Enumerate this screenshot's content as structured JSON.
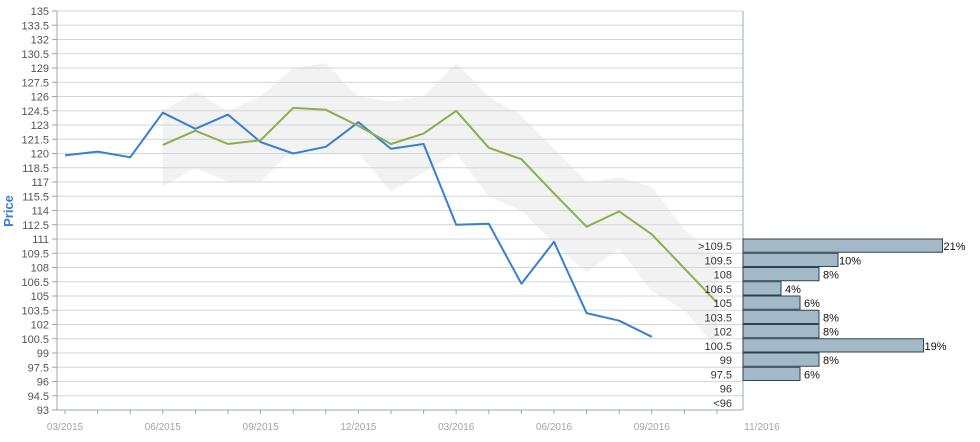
{
  "chart_data": {
    "type": "line",
    "ylabel": "Price",
    "yticks": [
      "135",
      "133.5",
      "132",
      "130.5",
      "129",
      "127.5",
      "126",
      "124.5",
      "123",
      "121.5",
      "120",
      "118.5",
      "117",
      "115.5",
      "114",
      "112.5",
      "111",
      "109.5",
      "108",
      "106.5",
      "105",
      "103.5",
      "102",
      "100.5",
      "99",
      "97.5",
      "96",
      "94.5",
      "93"
    ],
    "ylim": [
      93,
      135
    ],
    "xticks": [
      "03/2015",
      "06/2015",
      "09/2015",
      "12/2015",
      "03/2016",
      "06/2016",
      "09/2016",
      "11/2016"
    ],
    "x_start": "2015-03",
    "grid": true,
    "series": [
      {
        "name": "",
        "role": "actual",
        "color": "#3a7fcf",
        "x": [
          "2015-03",
          "2015-04",
          "2015-05",
          "2015-06",
          "2015-07",
          "2015-08",
          "2015-09",
          "2015-10",
          "2015-11",
          "2015-12",
          "2016-01",
          "2016-02",
          "2016-03",
          "2016-04",
          "2016-05",
          "2016-06",
          "2016-07",
          "2016-08",
          "2016-09"
        ],
        "values": [
          119.8,
          120.2,
          119.6,
          124.3,
          122.6,
          124.1,
          121.2,
          120.0,
          120.7,
          123.3,
          120.5,
          121.0,
          112.5,
          112.6,
          106.3,
          110.7,
          103.2,
          102.4,
          100.7
        ]
      },
      {
        "name": "",
        "role": "forecast",
        "color": "#8aaf4f",
        "x": [
          "2015-06",
          "2015-07",
          "2015-08",
          "2015-09",
          "2015-10",
          "2015-11",
          "2015-12",
          "2016-01",
          "2016-02",
          "2016-03",
          "2016-04",
          "2016-05",
          "2016-06",
          "2016-07",
          "2016-08",
          "2016-09",
          "2016-10",
          "2016-11"
        ],
        "values": [
          120.9,
          122.4,
          121.0,
          121.4,
          124.8,
          124.6,
          122.9,
          121.0,
          122.1,
          124.5,
          120.6,
          119.4,
          115.8,
          112.3,
          113.9,
          111.5,
          107.9,
          104.3
        ]
      }
    ],
    "band": {
      "color": "#f2f2f2",
      "x": [
        "2015-06",
        "2015-07",
        "2015-08",
        "2015-09",
        "2015-10",
        "2015-11",
        "2015-12",
        "2016-01",
        "2016-02",
        "2016-03",
        "2016-04",
        "2016-05",
        "2016-06",
        "2016-07",
        "2016-08",
        "2016-09",
        "2016-10",
        "2016-11"
      ],
      "upper": [
        124.5,
        126.5,
        124.5,
        126.0,
        129.0,
        129.5,
        126.0,
        125.5,
        126.0,
        129.5,
        126.0,
        124.0,
        120.5,
        117.0,
        117.5,
        116.5,
        112.0,
        109.0
      ],
      "lower": [
        116.5,
        118.5,
        117.0,
        117.0,
        120.5,
        120.0,
        120.0,
        116.0,
        118.0,
        120.0,
        115.5,
        114.0,
        110.5,
        107.5,
        110.0,
        105.5,
        103.5,
        99.5
      ]
    },
    "histogram": {
      "bar_color": "#a3b9c7",
      "bar_border": "#2e4250",
      "bins": [
        {
          "label": ">109.5",
          "pct": 21
        },
        {
          "label": "109.5",
          "pct": 10
        },
        {
          "label": "108",
          "pct": 8
        },
        {
          "label": "106.5",
          "pct": 4
        },
        {
          "label": "105",
          "pct": 6
        },
        {
          "label": "103.5",
          "pct": 8
        },
        {
          "label": "102",
          "pct": 8
        },
        {
          "label": "100.5",
          "pct": 19
        },
        {
          "label": "99",
          "pct": 8
        },
        {
          "label": "97.5",
          "pct": 6
        },
        {
          "label": "96",
          "pct": null
        },
        {
          "label": "<96",
          "pct": null
        }
      ],
      "pct_suffix": "%"
    },
    "colors": {
      "ylabel": "#3a7fcf",
      "grid": "#d0d6dc",
      "axis": "#9aa8b4"
    }
  }
}
